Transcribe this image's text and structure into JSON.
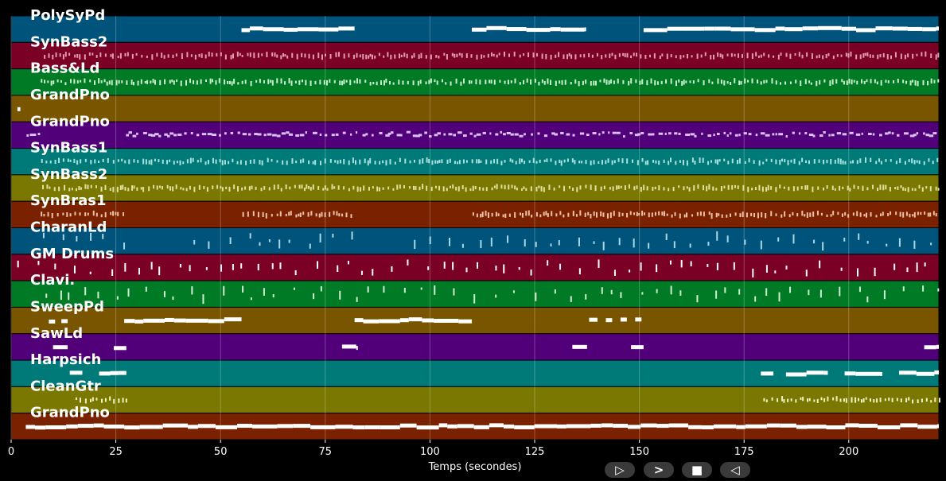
{
  "chart_data": {
    "type": "piano-roll",
    "xlabel": "Temps (secondes)",
    "xlim": [
      0,
      221.5
    ],
    "xticks": [
      0,
      25,
      50,
      75,
      100,
      125,
      150,
      175,
      200
    ],
    "grid": true,
    "track_colors": [
      "#00547c",
      "#7a0026",
      "#007a25",
      "#7a5500",
      "#52007a",
      "#007a78",
      "#7a7800",
      "#7a2200"
    ],
    "tracks": [
      {
        "name": "PolySyPd",
        "note_color": "#ffffff",
        "style": "long",
        "segments": [
          [
            55,
            82
          ],
          [
            110,
            137
          ],
          [
            151,
            221.5
          ]
        ]
      },
      {
        "name": "SynBass2",
        "note_color": "#e39ab5",
        "style": "dense",
        "segments": [
          [
            7,
            221.5
          ]
        ]
      },
      {
        "name": "Bass&Ld",
        "note_color": "#c8f0c8",
        "style": "dense",
        "segments": [
          [
            7,
            221.5
          ]
        ]
      },
      {
        "name": "GrandPno",
        "note_color": "#ffffff",
        "style": "long",
        "segments": [
          [
            1.5,
            2.2
          ]
        ]
      },
      {
        "name": "GrandPno",
        "note_color": "#d8c0f0",
        "style": "sparse-dense",
        "segments": [
          [
            3.5,
            6.5
          ],
          [
            27,
            221.5
          ]
        ]
      },
      {
        "name": "SynBass1",
        "note_color": "#a8e0e0",
        "style": "dense",
        "segments": [
          [
            7,
            221.5
          ]
        ]
      },
      {
        "name": "SynBass2",
        "note_color": "#e0e0a0",
        "style": "dense",
        "segments": [
          [
            7,
            221.5
          ]
        ]
      },
      {
        "name": "SynBras1",
        "note_color": "#f0c0a8",
        "style": "dense",
        "segments": [
          [
            7,
            27
          ],
          [
            55,
            82
          ],
          [
            110,
            221.5
          ]
        ]
      },
      {
        "name": "CharanLd",
        "note_color": "#a8d8e8",
        "style": "sparse",
        "segments": [
          [
            7,
            27
          ],
          [
            41,
            82
          ],
          [
            96,
            221.5
          ]
        ]
      },
      {
        "name": "GM Drums",
        "note_color": "#ffffff",
        "style": "sparse",
        "segments": [
          [
            0,
            221.5
          ]
        ]
      },
      {
        "name": "Clavi.",
        "note_color": "#d0f0d0",
        "style": "sparse",
        "segments": [
          [
            7,
            221.5
          ]
        ]
      },
      {
        "name": "SweepPd",
        "note_color": "#ffffff",
        "style": "long",
        "segments": [
          [
            9,
            10.5
          ],
          [
            12,
            13.5
          ],
          [
            27,
            55
          ],
          [
            82,
            110
          ],
          [
            138,
            140
          ],
          [
            142,
            143.5
          ],
          [
            145.5,
            147
          ],
          [
            149,
            150.5
          ]
        ]
      },
      {
        "name": "SawLd",
        "note_color": "#ffffff",
        "style": "long",
        "segments": [
          [
            10,
            13.5
          ],
          [
            24.5,
            27.5
          ],
          [
            79,
            82.5
          ],
          [
            134,
            137.5
          ],
          [
            148,
            151
          ],
          [
            218,
            221.5
          ]
        ]
      },
      {
        "name": "Harpsich",
        "note_color": "#ffffff",
        "style": "long",
        "segments": [
          [
            14,
            17
          ],
          [
            21,
            27.5
          ],
          [
            179,
            182
          ],
          [
            185,
            195
          ],
          [
            199,
            208
          ],
          [
            212,
            221.5
          ]
        ]
      },
      {
        "name": "CleanGtr",
        "note_color": "#f0f0c0",
        "style": "dense",
        "segments": [
          [
            14.5,
            27.5
          ],
          [
            179,
            221.5
          ]
        ]
      },
      {
        "name": "GrandPno",
        "note_color": "#ffffff",
        "style": "long",
        "segments": [
          [
            3.5,
            221.5
          ]
        ]
      }
    ]
  },
  "controls": {
    "play_label": "▷",
    "next_label": ">",
    "stop_label": "■",
    "prev_label": "◁"
  }
}
